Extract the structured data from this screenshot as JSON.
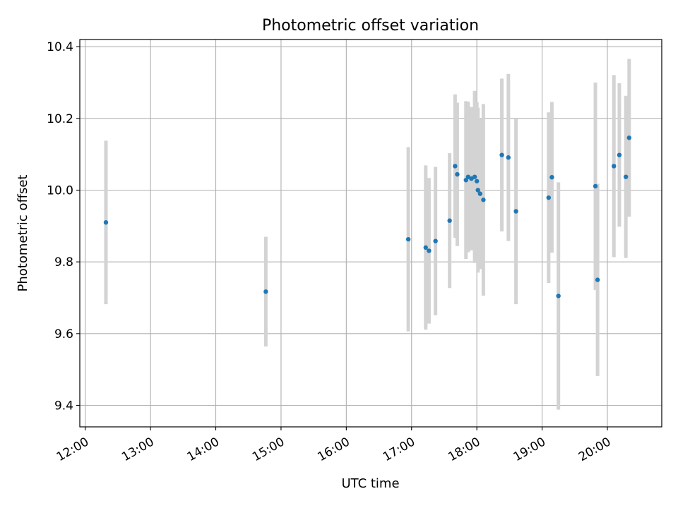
{
  "chart_data": {
    "type": "scatter",
    "title": "Photometric offset variation",
    "xlabel": "UTC time",
    "ylabel": "Photometric offset",
    "grid": true,
    "legend": "none",
    "x_axis": {
      "type": "time",
      "range": [
        "11:55",
        "20:50"
      ],
      "ticks": [
        "12:00",
        "13:00",
        "14:00",
        "15:00",
        "16:00",
        "17:00",
        "18:00",
        "19:00",
        "20:00"
      ]
    },
    "y_axis": {
      "range": [
        9.34,
        10.42
      ],
      "ticks": [
        "9.4",
        "9.6",
        "9.8",
        "10.0",
        "10.2",
        "10.4"
      ]
    },
    "colors": {
      "point": "#1f77b4",
      "errorbar": "#d3d3d3",
      "grid": "#b0b0b0"
    },
    "points": [
      {
        "t": "12:19",
        "y": 9.91,
        "err": 0.228
      },
      {
        "t": "14:46",
        "y": 9.717,
        "err": 0.153
      },
      {
        "t": "16:57",
        "y": 9.863,
        "err": 0.257
      },
      {
        "t": "17:13",
        "y": 9.84,
        "err": 0.229
      },
      {
        "t": "17:16",
        "y": 9.831,
        "err": 0.203
      },
      {
        "t": "17:22",
        "y": 9.858,
        "err": 0.207
      },
      {
        "t": "17:35",
        "y": 9.915,
        "err": 0.188
      },
      {
        "t": "17:40",
        "y": 10.067,
        "err": 0.2
      },
      {
        "t": "17:42",
        "y": 10.044,
        "err": 0.2
      },
      {
        "t": "17:50",
        "y": 10.028,
        "err": 0.22
      },
      {
        "t": "17:52",
        "y": 10.037,
        "err": 0.21
      },
      {
        "t": "17:55",
        "y": 10.032,
        "err": 0.2
      },
      {
        "t": "17:58",
        "y": 10.037,
        "err": 0.24
      },
      {
        "t": "18:00",
        "y": 10.025,
        "err": 0.22
      },
      {
        "t": "18:01",
        "y": 10.0,
        "err": 0.23
      },
      {
        "t": "18:03",
        "y": 9.99,
        "err": 0.21
      },
      {
        "t": "18:06",
        "y": 9.973,
        "err": 0.267
      },
      {
        "t": "18:23",
        "y": 10.098,
        "err": 0.213
      },
      {
        "t": "18:29",
        "y": 10.091,
        "err": 0.233
      },
      {
        "t": "18:36",
        "y": 9.941,
        "err": 0.259
      },
      {
        "t": "19:06",
        "y": 9.979,
        "err": 0.238
      },
      {
        "t": "19:09",
        "y": 10.036,
        "err": 0.21
      },
      {
        "t": "19:15",
        "y": 9.705,
        "err": 0.317
      },
      {
        "t": "19:49",
        "y": 10.011,
        "err": 0.289
      },
      {
        "t": "19:51",
        "y": 9.75,
        "err": 0.268
      },
      {
        "t": "20:06",
        "y": 10.067,
        "err": 0.254
      },
      {
        "t": "20:11",
        "y": 10.098,
        "err": 0.2
      },
      {
        "t": "20:17",
        "y": 10.037,
        "err": 0.226
      },
      {
        "t": "20:20",
        "y": 10.146,
        "err": 0.22
      }
    ]
  }
}
